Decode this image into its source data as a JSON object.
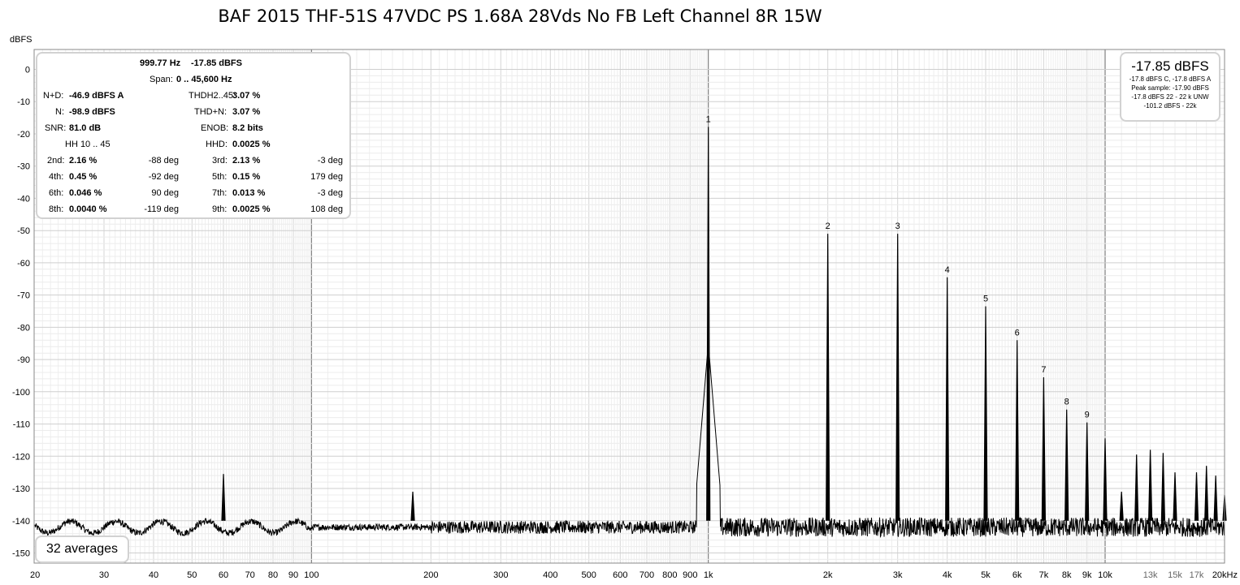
{
  "title": "BAF 2015 THF-51S 47VDC PS 1.68A 28Vds No FB Left Channel 8R 15W",
  "info": {
    "freq": "999.77 Hz",
    "level": "-17.85 dBFS",
    "span_label": "Span:",
    "span_value": "0 .. 45,600 Hz",
    "nd_label": "N+D:",
    "nd_value": "-46.9 dBFS A",
    "thd_label": "THDH2..45:",
    "thd_value": "3.07 %",
    "n_label": "N:",
    "n_value": "-98.9 dBFS",
    "thdn_label": "THD+N:",
    "thdn_value": "3.07 %",
    "snr_label": "SNR:",
    "snr_value": "81.0 dB",
    "enob_label": "ENOB:",
    "enob_value": "8.2 bits",
    "hh_label": "HH 10 .. 45",
    "hhd_label": "HHD:",
    "hhd_value": "0.0025 %",
    "harmonics": [
      {
        "l1": "2nd:",
        "v1": "2.16 %",
        "p1": "-88 deg",
        "l2": "3rd:",
        "v2": "2.13 %",
        "p2": "-3 deg"
      },
      {
        "l1": "4th:",
        "v1": "0.45 %",
        "p1": "-92 deg",
        "l2": "5th:",
        "v2": "0.15 %",
        "p2": "179 deg"
      },
      {
        "l1": "6th:",
        "v1": "0.046 %",
        "p1": "90 deg",
        "l2": "7th:",
        "v2": "0.013 %",
        "p2": "-3 deg"
      },
      {
        "l1": "8th:",
        "v1": "0.0040 %",
        "p1": "-119 deg",
        "l2": "9th:",
        "v2": "0.0025 %",
        "p2": "108 deg"
      }
    ]
  },
  "peak": {
    "big": "-17.85 dBFS",
    "line1": "-17.8 dBFS C, -17.8 dBFS A",
    "line2": "Peak sample: -17.90 dBFS",
    "line3": "-17.8 dBFS 22 - 22 k UNW",
    "line4": "-101.2 dBFS - 22k"
  },
  "averages": "32 averages",
  "chart_data": {
    "type": "line",
    "ylabel": "dBFS",
    "xlabel": "",
    "x_scale": "log",
    "xlim": [
      20,
      20000
    ],
    "ylim": [
      -152,
      -8
    ],
    "grid": true,
    "yticks": [
      0,
      -10,
      -20,
      -30,
      -40,
      -50,
      -60,
      -70,
      -80,
      -90,
      -100,
      -110,
      -120,
      -130,
      -140,
      -150
    ],
    "xticks": [
      {
        "v": 20,
        "label": "20"
      },
      {
        "v": 30,
        "label": "30"
      },
      {
        "v": 40,
        "label": "40"
      },
      {
        "v": 50,
        "label": "50"
      },
      {
        "v": 60,
        "label": "60"
      },
      {
        "v": 70,
        "label": "70"
      },
      {
        "v": 80,
        "label": "80"
      },
      {
        "v": 90,
        "label": "90"
      },
      {
        "v": 100,
        "label": "100"
      },
      {
        "v": 200,
        "label": "200"
      },
      {
        "v": 300,
        "label": "300"
      },
      {
        "v": 400,
        "label": "400"
      },
      {
        "v": 500,
        "label": "500"
      },
      {
        "v": 600,
        "label": "600"
      },
      {
        "v": 700,
        "label": "700"
      },
      {
        "v": 800,
        "label": "800"
      },
      {
        "v": 900,
        "label": "900"
      },
      {
        "v": 1000,
        "label": "1k"
      },
      {
        "v": 2000,
        "label": "2k"
      },
      {
        "v": 3000,
        "label": "3k"
      },
      {
        "v": 4000,
        "label": "4k"
      },
      {
        "v": 5000,
        "label": "5k"
      },
      {
        "v": 6000,
        "label": "6k"
      },
      {
        "v": 7000,
        "label": "7k"
      },
      {
        "v": 8000,
        "label": "8k"
      },
      {
        "v": 9000,
        "label": "9k"
      },
      {
        "v": 10000,
        "label": "10k"
      },
      {
        "v": 13000,
        "label": "13k"
      },
      {
        "v": 15000,
        "label": "15k"
      },
      {
        "v": 17000,
        "label": "17k"
      },
      {
        "v": 20000,
        "label": "20kHz"
      }
    ],
    "noise_floor_db": -142,
    "harmonic_peaks": [
      {
        "n": "1",
        "freq": 1000,
        "db": -17.85
      },
      {
        "n": "2",
        "freq": 2000,
        "db": -51
      },
      {
        "n": "3",
        "freq": 3000,
        "db": -51
      },
      {
        "n": "4",
        "freq": 4000,
        "db": -64.5
      },
      {
        "n": "5",
        "freq": 5000,
        "db": -73.5
      },
      {
        "n": "6",
        "freq": 6000,
        "db": -84
      },
      {
        "n": "7",
        "freq": 7000,
        "db": -95.5
      },
      {
        "n": "8",
        "freq": 8000,
        "db": -105.5
      },
      {
        "n": "9",
        "freq": 9000,
        "db": -109.5
      }
    ],
    "other_peaks": [
      {
        "freq": 60,
        "db": -125.5
      },
      {
        "freq": 180,
        "db": -131
      },
      {
        "freq": 10000,
        "db": -114.5
      },
      {
        "freq": 11000,
        "db": -131
      },
      {
        "freq": 12000,
        "db": -119.5
      },
      {
        "freq": 13000,
        "db": -118
      },
      {
        "freq": 14000,
        "db": -119
      },
      {
        "freq": 15000,
        "db": -125
      },
      {
        "freq": 17000,
        "db": -125
      },
      {
        "freq": 18000,
        "db": -123
      },
      {
        "freq": 19000,
        "db": -126
      },
      {
        "freq": 20000,
        "db": -132
      }
    ]
  }
}
